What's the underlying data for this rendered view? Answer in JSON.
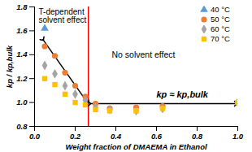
{
  "chart_data": {
    "type": "scatter",
    "x_label": "Weight fraction of DMAEMA in Ethanol",
    "y_label": "kp / kp,bulk",
    "xlim": [
      0,
      1
    ],
    "ylim": [
      0.8,
      1.8
    ],
    "xticks": [
      {
        "value": 0,
        "label": "0.0"
      },
      {
        "value": 0.2,
        "label": "0.2"
      },
      {
        "value": 0.4,
        "label": "0.4"
      },
      {
        "value": 0.6,
        "label": "0.6"
      },
      {
        "value": 0.8,
        "label": "0.8"
      },
      {
        "value": 1,
        "label": "1.0"
      }
    ],
    "yticks": [
      {
        "value": 0.8,
        "label": "0.8"
      },
      {
        "value": 1,
        "label": "1.0"
      },
      {
        "value": 1.2,
        "label": "1.2"
      },
      {
        "value": 1.4,
        "label": "1.4"
      },
      {
        "value": 1.6,
        "label": "1.6"
      },
      {
        "value": 1.8,
        "label": "1.8"
      }
    ],
    "grid": false,
    "legend": "top-right",
    "series": [
      {
        "name": "40 °C",
        "color": "#5b9bd5",
        "marker": "triangle",
        "x": [
          0.05
        ],
        "values": [
          1.62
        ]
      },
      {
        "name": "50 °C",
        "color": "#ed7d31",
        "marker": "circle",
        "x": [
          0.05,
          0.1,
          0.15,
          0.2,
          0.25,
          0.3,
          0.37,
          0.5,
          0.63,
          1.0
        ],
        "values": [
          1.47,
          1.39,
          1.25,
          1.14,
          1.05,
          0.99,
          0.95,
          0.96,
          0.97,
          1.0
        ]
      },
      {
        "name": "60 °C",
        "color": "#a5a5a5",
        "marker": "diamond",
        "x": [
          0.05,
          0.1,
          0.15,
          0.2,
          0.25,
          0.3,
          0.37,
          0.5,
          0.63,
          1.0
        ],
        "values": [
          1.31,
          1.24,
          1.14,
          1.07,
          1.02,
          0.96,
          0.94,
          0.93,
          0.95,
          1.0
        ]
      },
      {
        "name": "70 °C",
        "color": "#ffc000",
        "marker": "square",
        "x": [
          0.05,
          0.1,
          0.15,
          0.2,
          0.25,
          0.3,
          0.37,
          0.5,
          0.63,
          1.0
        ],
        "values": [
          1.2,
          1.15,
          1.07,
          1.0,
          0.98,
          0.94,
          0.93,
          0.93,
          0.95,
          1.0
        ]
      }
    ],
    "vline": {
      "x": 0.265,
      "color": "#ff0000"
    },
    "arrows": [
      {
        "x1": 0.04,
        "y1": 1.53,
        "x2": 0.26,
        "y2": 1.0
      },
      {
        "x1": 0.27,
        "y1": 0.99,
        "x2": 0.99,
        "y2": 0.99
      }
    ],
    "annotations": [
      "T-dependent",
      "solvent effect",
      "No solvent effect",
      "kp ≈ kp,bulk"
    ]
  }
}
